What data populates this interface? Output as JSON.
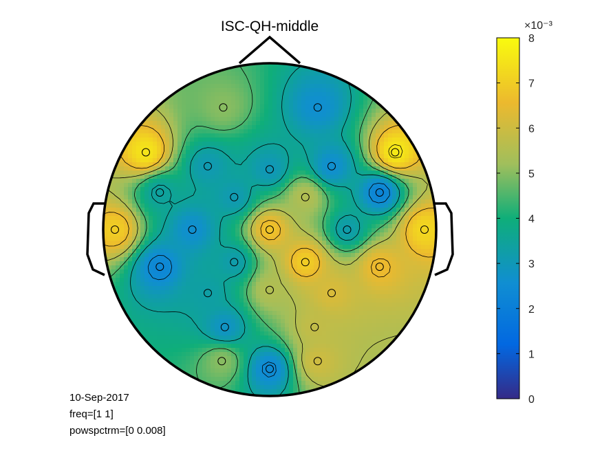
{
  "chart_data": {
    "type": "heatmap",
    "title": "ISC-QH-middle",
    "colorbar": {
      "ticks": [
        "0",
        "1",
        "2",
        "3",
        "4",
        "5",
        "6",
        "7",
        "8"
      ],
      "exponent": "×10⁻³",
      "range": [
        0,
        0.008
      ],
      "colormap": [
        "#352a87",
        "#0268e1",
        "#108ed2",
        "#0fae79",
        "#a0bf5c",
        "#ecb92e",
        "#f9fb0e"
      ]
    },
    "electrodes": [
      {
        "x": -0.3,
        "y": 0.79,
        "value": 0.005
      },
      {
        "x": 0.31,
        "y": 0.79,
        "value": 0.0026
      },
      {
        "x": -0.8,
        "y": 0.5,
        "value": 0.0075
      },
      {
        "x": -0.4,
        "y": 0.41,
        "value": 0.0031
      },
      {
        "x": 0.0,
        "y": 0.39,
        "value": 0.003
      },
      {
        "x": 0.4,
        "y": 0.41,
        "value": 0.0026
      },
      {
        "x": 0.81,
        "y": 0.5,
        "value": 0.0076
      },
      {
        "x": -0.71,
        "y": 0.24,
        "value": 0.0034
      },
      {
        "x": -0.23,
        "y": 0.21,
        "value": 0.0031
      },
      {
        "x": 0.23,
        "y": 0.21,
        "value": 0.0055
      },
      {
        "x": 0.71,
        "y": 0.24,
        "value": 0.0022
      },
      {
        "x": -1.0,
        "y": 0.0,
        "value": 0.007
      },
      {
        "x": -0.5,
        "y": 0.0,
        "value": 0.0026
      },
      {
        "x": 0.0,
        "y": 0.0,
        "value": 0.0068
      },
      {
        "x": 0.5,
        "y": 0.0,
        "value": 0.0032
      },
      {
        "x": 1.0,
        "y": 0.0,
        "value": 0.0072
      },
      {
        "x": -0.71,
        "y": -0.24,
        "value": 0.0023
      },
      {
        "x": -0.23,
        "y": -0.21,
        "value": 0.0032
      },
      {
        "x": 0.23,
        "y": -0.21,
        "value": 0.007
      },
      {
        "x": 0.71,
        "y": -0.24,
        "value": 0.0066
      },
      {
        "x": -0.4,
        "y": -0.41,
        "value": 0.0033
      },
      {
        "x": 0.0,
        "y": -0.39,
        "value": 0.0055
      },
      {
        "x": 0.4,
        "y": -0.41,
        "value": 0.0062
      },
      {
        "x": -0.29,
        "y": -0.63,
        "value": 0.0028
      },
      {
        "x": 0.29,
        "y": -0.63,
        "value": 0.0058
      },
      {
        "x": -0.31,
        "y": -0.85,
        "value": 0.005
      },
      {
        "x": 0.0,
        "y": -0.9,
        "value": 0.0024
      },
      {
        "x": 0.31,
        "y": -0.85,
        "value": 0.006
      }
    ]
  },
  "info": {
    "date": "10-Sep-2017",
    "freq": "freq=[1 1]",
    "range": "powspctrm=[0 0.008]"
  }
}
